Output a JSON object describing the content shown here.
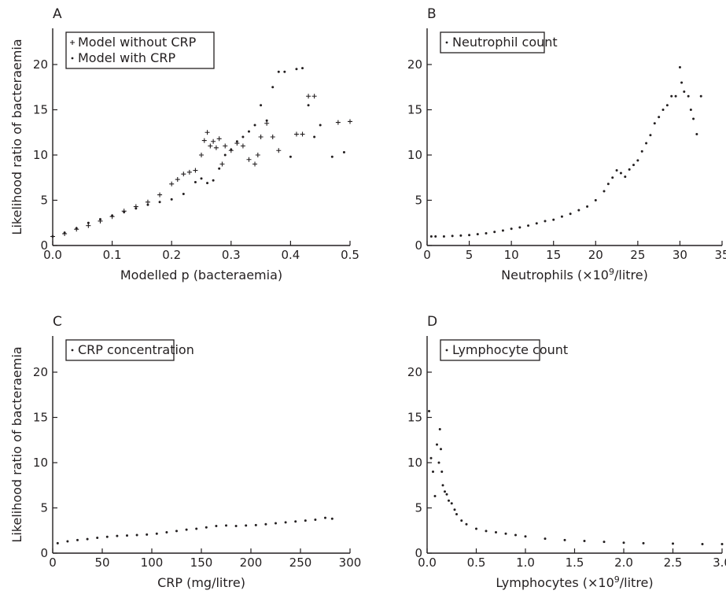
{
  "chart_data": [
    {
      "panel": "A",
      "type": "scatter",
      "xlabel": "Modelled p (bacteraemia)",
      "ylabel": "Likelihood ratio of bacteraemia",
      "xlim": [
        0,
        0.5
      ],
      "ylim": [
        0,
        24
      ],
      "xticks": [
        "0.0",
        "0.1",
        "0.2",
        "0.3",
        "0.4",
        "0.5"
      ],
      "yticks": [
        "0",
        "5",
        "10",
        "15",
        "20"
      ],
      "legend": "top-left",
      "series": [
        {
          "name": "Model without CRP",
          "marker": "+",
          "x": [
            0.0,
            0.02,
            0.04,
            0.06,
            0.08,
            0.1,
            0.12,
            0.14,
            0.16,
            0.18,
            0.2,
            0.21,
            0.22,
            0.23,
            0.24,
            0.25,
            0.255,
            0.26,
            0.265,
            0.27,
            0.275,
            0.28,
            0.285,
            0.29,
            0.3,
            0.31,
            0.32,
            0.33,
            0.34,
            0.345,
            0.35,
            0.36,
            0.37,
            0.38,
            0.41,
            0.42,
            0.43,
            0.44,
            0.48,
            0.5
          ],
          "y": [
            1.0,
            1.3,
            1.8,
            2.2,
            2.7,
            3.2,
            3.8,
            4.3,
            4.8,
            5.6,
            6.8,
            7.3,
            7.9,
            8.1,
            8.3,
            10.0,
            11.6,
            12.5,
            11.0,
            11.5,
            10.8,
            11.8,
            9.0,
            11.0,
            10.5,
            11.3,
            11.0,
            9.5,
            9.0,
            10.0,
            12.0,
            13.5,
            12.0,
            10.5,
            12.3,
            12.3,
            16.5,
            16.5,
            13.6,
            13.7
          ]
        },
        {
          "name": "Model with CRP",
          "marker": "dot",
          "x": [
            0.0,
            0.02,
            0.04,
            0.06,
            0.08,
            0.1,
            0.12,
            0.14,
            0.16,
            0.18,
            0.2,
            0.22,
            0.24,
            0.25,
            0.26,
            0.27,
            0.28,
            0.29,
            0.3,
            0.31,
            0.32,
            0.33,
            0.34,
            0.35,
            0.36,
            0.37,
            0.38,
            0.39,
            0.4,
            0.41,
            0.42,
            0.43,
            0.44,
            0.45,
            0.47,
            0.49
          ],
          "y": [
            1.0,
            1.4,
            1.9,
            2.5,
            2.9,
            3.3,
            3.7,
            4.1,
            4.5,
            4.8,
            5.1,
            5.7,
            7.0,
            7.4,
            6.9,
            7.2,
            8.5,
            10.0,
            10.6,
            11.5,
            12.0,
            12.6,
            13.3,
            15.5,
            13.8,
            17.5,
            19.2,
            19.2,
            9.8,
            19.5,
            19.6,
            15.5,
            12.0,
            13.3,
            9.8,
            10.3
          ]
        }
      ]
    },
    {
      "panel": "B",
      "type": "scatter",
      "xlabel": "Neutrophils (×10⁹/litre)",
      "ylabel": "",
      "xlim": [
        0,
        35
      ],
      "ylim": [
        0,
        24
      ],
      "xticks": [
        "0",
        "5",
        "10",
        "15",
        "20",
        "25",
        "30",
        "35"
      ],
      "yticks": [
        "0",
        "5",
        "10",
        "15",
        "20"
      ],
      "legend": "top-left",
      "series": [
        {
          "name": "Neutrophil count",
          "marker": "dot",
          "x": [
            0.5,
            1,
            2,
            3,
            4,
            5,
            6,
            7,
            8,
            9,
            10,
            11,
            12,
            13,
            14,
            15,
            16,
            17,
            18,
            19,
            20,
            21,
            21.5,
            22,
            22.5,
            23,
            23.5,
            24,
            24.5,
            25,
            25.5,
            26,
            26.5,
            27,
            27.5,
            28,
            28.5,
            29,
            29.5,
            30,
            30.2,
            30.5,
            31,
            31.3,
            31.6,
            32,
            32.5
          ],
          "y": [
            1.0,
            1.0,
            1.0,
            1.05,
            1.1,
            1.15,
            1.25,
            1.35,
            1.5,
            1.65,
            1.85,
            2.0,
            2.2,
            2.45,
            2.7,
            2.85,
            3.2,
            3.5,
            3.9,
            4.3,
            5.0,
            6.0,
            6.8,
            7.5,
            8.3,
            8.0,
            7.6,
            8.4,
            8.9,
            9.4,
            10.4,
            11.3,
            12.2,
            13.5,
            14.2,
            15.0,
            15.5,
            16.5,
            16.5,
            19.7,
            18.0,
            17.0,
            16.5,
            15.0,
            14.0,
            12.3,
            16.5
          ]
        }
      ]
    },
    {
      "panel": "C",
      "type": "scatter",
      "xlabel": "CRP (mg/litre)",
      "ylabel": "Likelihood ratio of bacteraemia",
      "xlim": [
        0,
        300
      ],
      "ylim": [
        0,
        24
      ],
      "xticks": [
        "0",
        "50",
        "100",
        "150",
        "200",
        "250",
        "300"
      ],
      "yticks": [
        "0",
        "5",
        "10",
        "15",
        "20"
      ],
      "legend": "top-left",
      "series": [
        {
          "name": "CRP concentration",
          "marker": "dot",
          "x": [
            5,
            15,
            25,
            35,
            45,
            55,
            65,
            75,
            85,
            95,
            105,
            115,
            125,
            135,
            145,
            155,
            165,
            175,
            185,
            195,
            205,
            215,
            225,
            235,
            245,
            255,
            265,
            275,
            282
          ],
          "y": [
            1.1,
            1.3,
            1.45,
            1.55,
            1.7,
            1.8,
            1.9,
            1.95,
            2.0,
            2.05,
            2.15,
            2.3,
            2.45,
            2.6,
            2.7,
            2.85,
            3.0,
            3.05,
            3.0,
            3.05,
            3.1,
            3.2,
            3.3,
            3.4,
            3.5,
            3.6,
            3.7,
            3.9,
            3.8
          ]
        }
      ]
    },
    {
      "panel": "D",
      "type": "scatter",
      "xlabel": "Lymphocytes (×10⁹/litre)",
      "ylabel": "",
      "xlim": [
        0,
        3.0
      ],
      "ylim": [
        0,
        24
      ],
      "xticks": [
        "0.0",
        "0.5",
        "1.0",
        "1.5",
        "2.0",
        "2.5",
        "3.0"
      ],
      "yticks": [
        "0",
        "5",
        "10",
        "15",
        "20"
      ],
      "legend": "top-left",
      "series": [
        {
          "name": "Lymphocyte count",
          "marker": "dot",
          "x": [
            0.02,
            0.04,
            0.06,
            0.08,
            0.1,
            0.12,
            0.13,
            0.14,
            0.15,
            0.16,
            0.18,
            0.2,
            0.22,
            0.25,
            0.28,
            0.3,
            0.35,
            0.4,
            0.5,
            0.6,
            0.7,
            0.8,
            0.9,
            1.0,
            1.2,
            1.4,
            1.6,
            1.8,
            2.0,
            2.2,
            2.5,
            2.8,
            3.0
          ],
          "y": [
            15.7,
            10.5,
            9.0,
            6.3,
            12.0,
            10.0,
            13.7,
            11.5,
            9.0,
            7.5,
            6.8,
            6.5,
            5.8,
            5.5,
            4.8,
            4.3,
            3.6,
            3.2,
            2.7,
            2.45,
            2.3,
            2.15,
            2.0,
            1.85,
            1.6,
            1.45,
            1.35,
            1.25,
            1.15,
            1.1,
            1.05,
            1.0,
            1.0
          ]
        }
      ]
    }
  ]
}
